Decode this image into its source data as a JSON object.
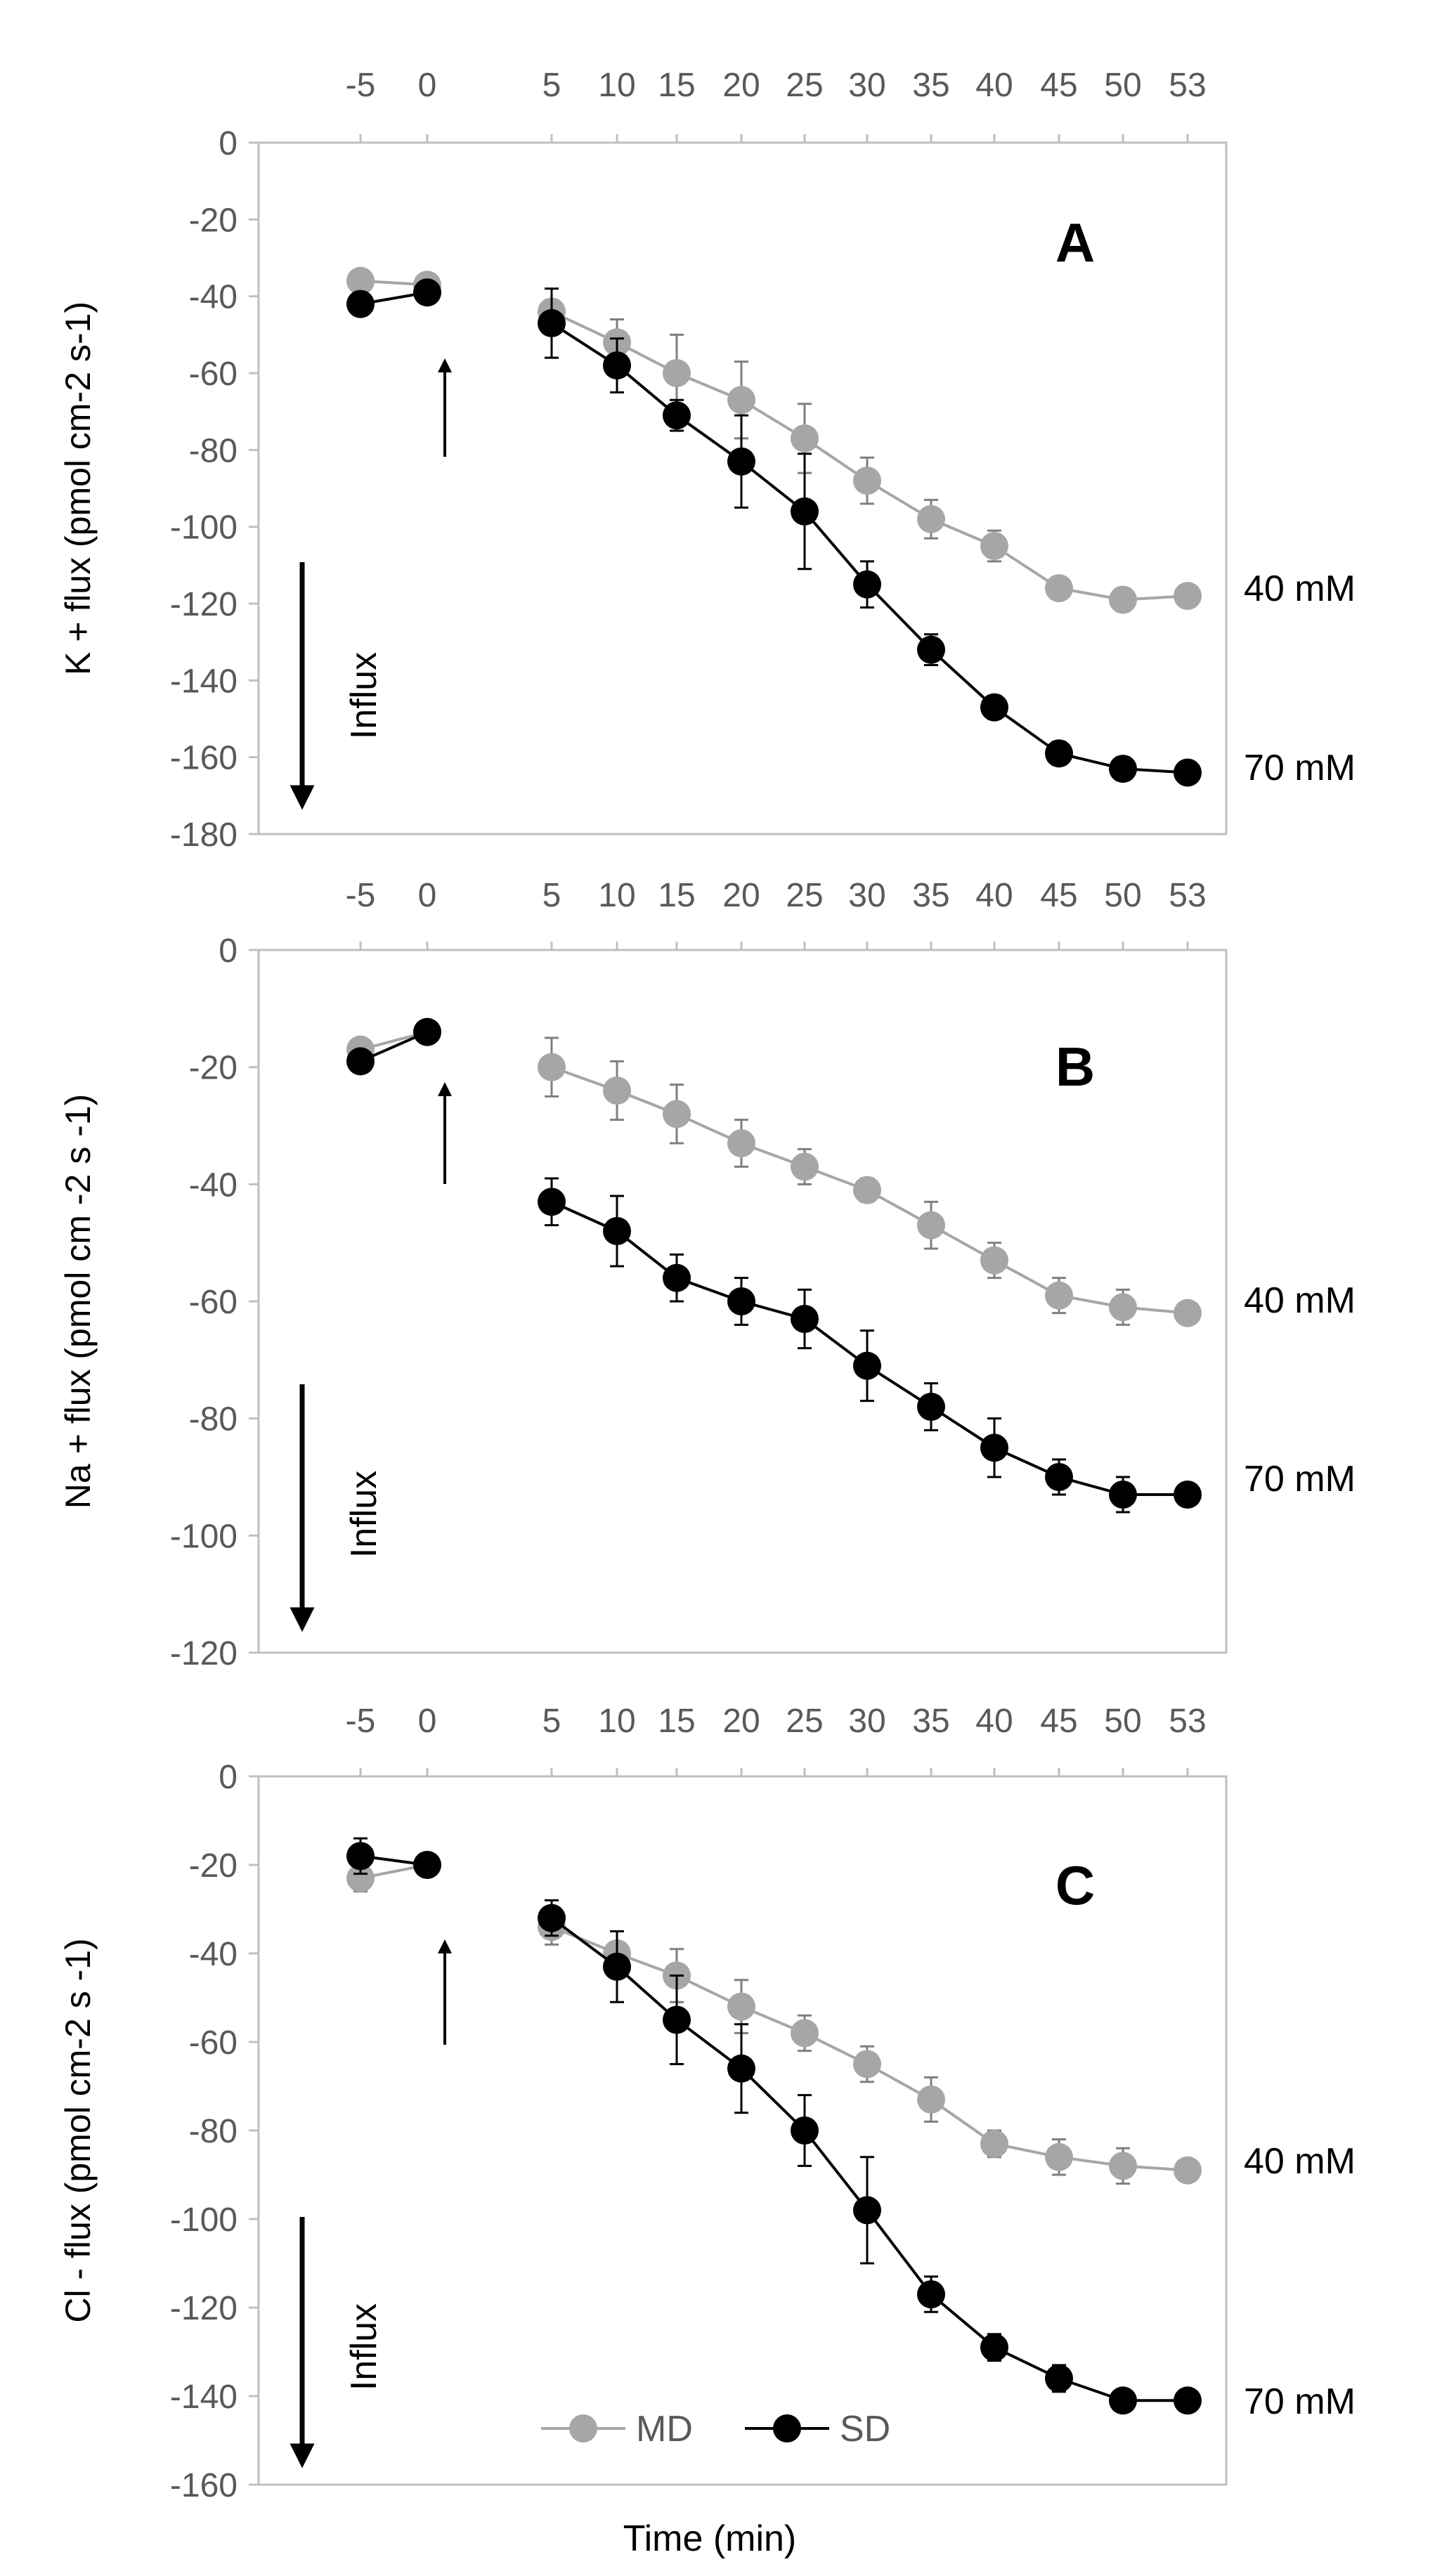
{
  "chart_data": [
    {
      "type": "line",
      "panel_letter": "A",
      "ylabel": "K + flux (pmol cm-2 s-1)",
      "x_ticks": [
        "-5",
        "0",
        "5",
        "10",
        "15",
        "20",
        "25",
        "30",
        "35",
        "40",
        "45",
        "50",
        "53"
      ],
      "y_ticks": [
        "0",
        "-20",
        "-40",
        "-60",
        "-80",
        "-100",
        "-120",
        "-140",
        "-160",
        "-180"
      ],
      "ylim": [
        -180,
        0
      ],
      "influx_label": "Influx",
      "series": [
        {
          "name": "MD",
          "color": "#a6a6a6",
          "end_label": "40 mM",
          "pre": [
            {
              "x": -5,
              "y": -36,
              "err": 2
            },
            {
              "x": 0,
              "y": -37,
              "err": 1
            }
          ],
          "points": [
            {
              "x": 5,
              "y": -44,
              "err": 3
            },
            {
              "x": 10,
              "y": -52,
              "err": 6
            },
            {
              "x": 15,
              "y": -60,
              "err": 10
            },
            {
              "x": 20,
              "y": -67,
              "err": 10
            },
            {
              "x": 25,
              "y": -77,
              "err": 9
            },
            {
              "x": 30,
              "y": -88,
              "err": 6
            },
            {
              "x": 35,
              "y": -98,
              "err": 5
            },
            {
              "x": 40,
              "y": -105,
              "err": 4
            },
            {
              "x": 45,
              "y": -116,
              "err": 2
            },
            {
              "x": 50,
              "y": -119,
              "err": 3
            },
            {
              "x": 53,
              "y": -118,
              "err": 2
            }
          ]
        },
        {
          "name": "SD",
          "color": "#000000",
          "end_label": "70 mM",
          "pre": [
            {
              "x": -5,
              "y": -42,
              "err": 3
            },
            {
              "x": 0,
              "y": -39,
              "err": 2
            }
          ],
          "points": [
            {
              "x": 5,
              "y": -47,
              "err": 9
            },
            {
              "x": 10,
              "y": -58,
              "err": 7
            },
            {
              "x": 15,
              "y": -71,
              "err": 4
            },
            {
              "x": 20,
              "y": -83,
              "err": 12
            },
            {
              "x": 25,
              "y": -96,
              "err": 15
            },
            {
              "x": 30,
              "y": -115,
              "err": 6
            },
            {
              "x": 35,
              "y": -132,
              "err": 4
            },
            {
              "x": 40,
              "y": -147,
              "err": 3
            },
            {
              "x": 45,
              "y": -159,
              "err": 3
            },
            {
              "x": 50,
              "y": -163,
              "err": 3
            },
            {
              "x": 53,
              "y": -164,
              "err": 2
            }
          ]
        }
      ]
    },
    {
      "type": "line",
      "panel_letter": "B",
      "ylabel": "Na + flux (pmol cm -2 s -1)",
      "x_ticks": [
        "-5",
        "0",
        "5",
        "10",
        "15",
        "20",
        "25",
        "30",
        "35",
        "40",
        "45",
        "50",
        "53"
      ],
      "y_ticks": [
        "0",
        "-20",
        "-40",
        "-60",
        "-80",
        "-100",
        "-120"
      ],
      "ylim": [
        -120,
        0
      ],
      "influx_label": "Influx",
      "series": [
        {
          "name": "MD",
          "color": "#a6a6a6",
          "end_label": "40 mM",
          "pre": [
            {
              "x": -5,
              "y": -17,
              "err": 1
            },
            {
              "x": 0,
              "y": -14,
              "err": 1
            }
          ],
          "points": [
            {
              "x": 5,
              "y": -20,
              "err": 5
            },
            {
              "x": 10,
              "y": -24,
              "err": 5
            },
            {
              "x": 15,
              "y": -28,
              "err": 5
            },
            {
              "x": 20,
              "y": -33,
              "err": 4
            },
            {
              "x": 25,
              "y": -37,
              "err": 3
            },
            {
              "x": 30,
              "y": -41,
              "err": 2
            },
            {
              "x": 35,
              "y": -47,
              "err": 4
            },
            {
              "x": 40,
              "y": -53,
              "err": 3
            },
            {
              "x": 45,
              "y": -59,
              "err": 3
            },
            {
              "x": 50,
              "y": -61,
              "err": 3
            },
            {
              "x": 53,
              "y": -62,
              "err": 1
            }
          ]
        },
        {
          "name": "SD",
          "color": "#000000",
          "end_label": "70 mM",
          "pre": [
            {
              "x": -5,
              "y": -19,
              "err": 1
            },
            {
              "x": 0,
              "y": -14,
              "err": 1
            }
          ],
          "points": [
            {
              "x": 5,
              "y": -43,
              "err": 4
            },
            {
              "x": 10,
              "y": -48,
              "err": 6
            },
            {
              "x": 15,
              "y": -56,
              "err": 4
            },
            {
              "x": 20,
              "y": -60,
              "err": 4
            },
            {
              "x": 25,
              "y": -63,
              "err": 5
            },
            {
              "x": 30,
              "y": -71,
              "err": 6
            },
            {
              "x": 35,
              "y": -78,
              "err": 4
            },
            {
              "x": 40,
              "y": -85,
              "err": 5
            },
            {
              "x": 45,
              "y": -90,
              "err": 3
            },
            {
              "x": 50,
              "y": -93,
              "err": 3
            },
            {
              "x": 53,
              "y": -93,
              "err": 1
            }
          ]
        }
      ]
    },
    {
      "type": "line",
      "panel_letter": "C",
      "ylabel": "Cl - flux (pmol cm-2 s -1)",
      "x_ticks": [
        "-5",
        "0",
        "5",
        "10",
        "15",
        "20",
        "25",
        "30",
        "35",
        "40",
        "45",
        "50",
        "53"
      ],
      "y_ticks": [
        "0",
        "-20",
        "-40",
        "-60",
        "-80",
        "-100",
        "-120",
        "-140",
        "-160"
      ],
      "ylim": [
        -160,
        0
      ],
      "influx_label": "Influx",
      "xlabel": "Time (min)",
      "legend": [
        {
          "name": "MD",
          "color": "#a6a6a6"
        },
        {
          "name": "SD",
          "color": "#000000"
        }
      ],
      "series": [
        {
          "name": "MD",
          "color": "#a6a6a6",
          "end_label": "40 mM",
          "pre": [
            {
              "x": -5,
              "y": -23,
              "err": 3
            },
            {
              "x": 0,
              "y": -20,
              "err": 1
            }
          ],
          "points": [
            {
              "x": 5,
              "y": -34,
              "err": 4
            },
            {
              "x": 10,
              "y": -40,
              "err": 5
            },
            {
              "x": 15,
              "y": -45,
              "err": 6
            },
            {
              "x": 20,
              "y": -52,
              "err": 6
            },
            {
              "x": 25,
              "y": -58,
              "err": 4
            },
            {
              "x": 30,
              "y": -65,
              "err": 4
            },
            {
              "x": 35,
              "y": -73,
              "err": 5
            },
            {
              "x": 40,
              "y": -83,
              "err": 3
            },
            {
              "x": 45,
              "y": -86,
              "err": 4
            },
            {
              "x": 50,
              "y": -88,
              "err": 4
            },
            {
              "x": 53,
              "y": -89,
              "err": 1
            }
          ]
        },
        {
          "name": "SD",
          "color": "#000000",
          "end_label": "70 mM",
          "pre": [
            {
              "x": -5,
              "y": -18,
              "err": 4
            },
            {
              "x": 0,
              "y": -20,
              "err": 1
            }
          ],
          "points": [
            {
              "x": 5,
              "y": -32,
              "err": 4
            },
            {
              "x": 10,
              "y": -43,
              "err": 8
            },
            {
              "x": 15,
              "y": -55,
              "err": 10
            },
            {
              "x": 20,
              "y": -66,
              "err": 10
            },
            {
              "x": 25,
              "y": -80,
              "err": 8
            },
            {
              "x": 30,
              "y": -98,
              "err": 12
            },
            {
              "x": 35,
              "y": -117,
              "err": 4
            },
            {
              "x": 40,
              "y": -129,
              "err": 3
            },
            {
              "x": 45,
              "y": -136,
              "err": 3
            },
            {
              "x": 50,
              "y": -141,
              "err": 2
            },
            {
              "x": 53,
              "y": -141,
              "err": 2
            }
          ]
        }
      ]
    }
  ]
}
